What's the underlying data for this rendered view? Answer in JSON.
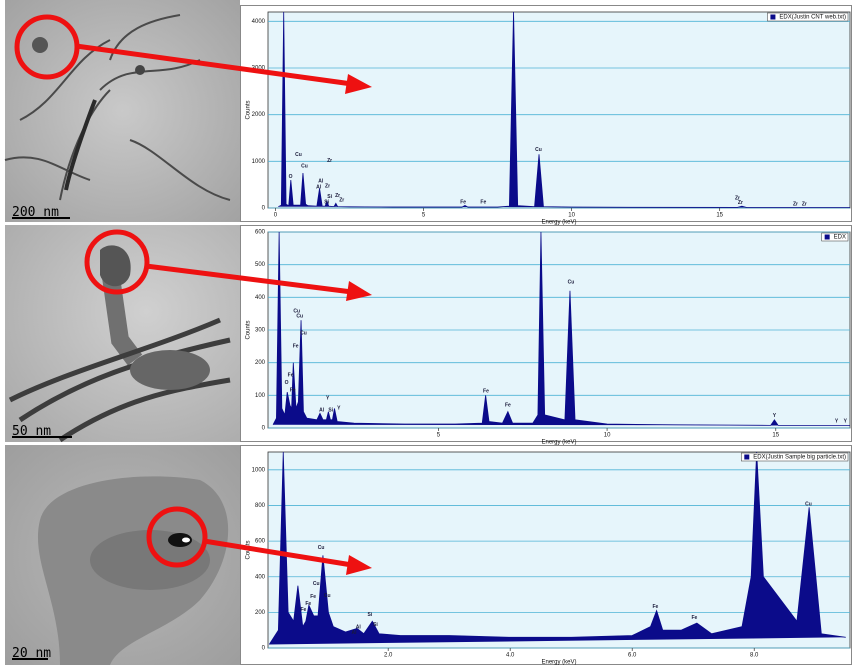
{
  "images": [
    {
      "scale_bar": "200 nm"
    },
    {
      "scale_bar": "50 nm"
    },
    {
      "scale_bar": "20 nm"
    }
  ],
  "chart_data": [
    {
      "type": "area",
      "x_label": "Energy (keV)",
      "y_label": "Counts",
      "x": [
        0.1,
        0.2,
        0.28,
        0.36,
        0.45,
        0.52,
        0.6,
        0.85,
        0.93,
        1.02,
        1.1,
        1.4,
        1.49,
        1.58,
        1.68,
        1.74,
        1.8,
        1.98,
        2.04,
        2.1,
        2.5,
        4,
        6.3,
        6.4,
        6.5,
        7.5,
        7.9,
        8.04,
        8.18,
        8.75,
        8.9,
        9.05,
        10,
        12,
        15.6,
        15.75,
        15.9,
        18,
        19.4
      ],
      "series": [
        {
          "name": "EDX(Justin CNT web.txt)",
          "color": "#0b0b8a",
          "values": [
            30,
            60,
            4200,
            80,
            50,
            600,
            60,
            60,
            750,
            80,
            50,
            40,
            420,
            40,
            40,
            150,
            40,
            30,
            100,
            30,
            25,
            20,
            20,
            55,
            20,
            20,
            40,
            4200,
            50,
            30,
            1150,
            30,
            20,
            15,
            12,
            40,
            12,
            10,
            10
          ]
        }
      ],
      "xlim": [
        -0.25,
        19.4
      ],
      "ylim": [
        0,
        4200
      ],
      "xticks": [
        0,
        5,
        10,
        15
      ],
      "yticks": [
        0,
        1000,
        2000,
        3000,
        4000
      ],
      "grid": true,
      "annotations": [
        {
          "text": "Cu",
          "x": 0.78,
          "y": 1140
        },
        {
          "text": "O",
          "x": 0.51,
          "y": 670
        },
        {
          "text": "Cu",
          "x": 0.98,
          "y": 900
        },
        {
          "text": "Zr",
          "x": 1.83,
          "y": 1010
        },
        {
          "text": "Al",
          "x": 1.53,
          "y": 580
        },
        {
          "text": "Al",
          "x": 1.46,
          "y": 450
        },
        {
          "text": "Zr",
          "x": 1.76,
          "y": 470
        },
        {
          "text": "Si",
          "x": 1.83,
          "y": 240
        },
        {
          "text": "Zr",
          "x": 2.1,
          "y": 260
        },
        {
          "text": "Si",
          "x": 1.73,
          "y": 130
        },
        {
          "text": "Zr",
          "x": 2.24,
          "y": 170
        },
        {
          "text": "Fe",
          "x": 6.34,
          "y": 130
        },
        {
          "text": "Fe",
          "x": 7.02,
          "y": 130
        },
        {
          "text": "Cu",
          "x": 8.88,
          "y": 1250
        },
        {
          "text": "Zr",
          "x": 15.6,
          "y": 215
        },
        {
          "text": "Zr",
          "x": 15.7,
          "y": 110
        },
        {
          "text": "Zr",
          "x": 17.56,
          "y": 86
        },
        {
          "text": "Zr",
          "x": 17.86,
          "y": 86
        }
      ]
    },
    {
      "type": "area",
      "x_label": "Energy (keV)",
      "y_label": "Counts",
      "x": [
        0.1,
        0.2,
        0.28,
        0.36,
        0.45,
        0.52,
        0.6,
        0.65,
        0.7,
        0.78,
        0.85,
        0.93,
        1.0,
        1.1,
        1.4,
        1.49,
        1.58,
        1.68,
        1.74,
        1.8,
        1.86,
        1.92,
        2.0,
        2.5,
        4,
        5.5,
        6.3,
        6.4,
        6.5,
        6.9,
        7.06,
        7.2,
        7.8,
        7.95,
        8.04,
        8.15,
        8.75,
        8.9,
        9.05,
        10,
        12,
        14.85,
        14.96,
        15.07,
        17.2
      ],
      "series": [
        {
          "name": "EDX",
          "color": "#0b0b8a",
          "values": [
            10,
            30,
            600,
            60,
            40,
            110,
            70,
            60,
            200,
            60,
            80,
            330,
            50,
            30,
            25,
            45,
            25,
            25,
            50,
            25,
            25,
            60,
            20,
            15,
            12,
            12,
            15,
            100,
            20,
            15,
            50,
            15,
            15,
            40,
            600,
            40,
            25,
            420,
            25,
            12,
            10,
            8,
            25,
            8,
            8
          ]
        }
      ],
      "xlim": [
        -0.05,
        17.2
      ],
      "ylim": [
        0,
        600
      ],
      "xticks": [
        5,
        10,
        15
      ],
      "yticks": [
        0,
        100,
        200,
        300,
        400,
        500,
        600
      ],
      "grid": true,
      "annotations": [
        {
          "text": "Fe",
          "x": 0.62,
          "y": 162
        },
        {
          "text": "Cu",
          "x": 0.8,
          "y": 358
        },
        {
          "text": "Cu",
          "x": 0.89,
          "y": 343
        },
        {
          "text": "Cu",
          "x": 1.0,
          "y": 291
        },
        {
          "text": "Fe",
          "x": 0.77,
          "y": 251
        },
        {
          "text": "O",
          "x": 0.5,
          "y": 138
        },
        {
          "text": "Fe",
          "x": 0.68,
          "y": 116
        },
        {
          "text": "Y",
          "x": 1.72,
          "y": 92
        },
        {
          "text": "Al",
          "x": 1.54,
          "y": 55
        },
        {
          "text": "Si",
          "x": 1.81,
          "y": 55
        },
        {
          "text": "Y",
          "x": 2.05,
          "y": 61
        },
        {
          "text": "Fe",
          "x": 6.41,
          "y": 113
        },
        {
          "text": "Fe",
          "x": 7.06,
          "y": 70
        },
        {
          "text": "Cu",
          "x": 8.93,
          "y": 447
        },
        {
          "text": "Y",
          "x": 14.96,
          "y": 37
        },
        {
          "text": "Y",
          "x": 16.8,
          "y": 21
        },
        {
          "text": "Y",
          "x": 17.06,
          "y": 21
        }
      ]
    },
    {
      "type": "area",
      "x_label": "Energy (keV)",
      "y_label": "Counts",
      "x": [
        0.05,
        0.2,
        0.28,
        0.36,
        0.45,
        0.52,
        0.6,
        0.65,
        0.7,
        0.78,
        0.85,
        0.93,
        1.02,
        1.1,
        1.3,
        1.49,
        1.6,
        1.74,
        1.85,
        2.2,
        3,
        4,
        5,
        6,
        6.3,
        6.4,
        6.5,
        6.8,
        7.06,
        7.3,
        7.8,
        7.95,
        8.04,
        8.15,
        8.7,
        8.9,
        9.1,
        9.5
      ],
      "series": [
        {
          "name": "EDX(Justin Sample big particle.txt)",
          "color": "#0b0b8a",
          "values": [
            20,
            100,
            1100,
            200,
            150,
            350,
            120,
            150,
            240,
            180,
            180,
            520,
            200,
            120,
            90,
            110,
            80,
            150,
            80,
            70,
            70,
            60,
            60,
            70,
            120,
            210,
            100,
            100,
            140,
            80,
            120,
            400,
            1100,
            400,
            150,
            790,
            80,
            60
          ]
        }
      ],
      "xlim": [
        0.03,
        9.57
      ],
      "ylim": [
        0,
        1100
      ],
      "xticks": [
        {
          "value": 2,
          "label": "2.0"
        },
        {
          "value": 4,
          "label": "4.0"
        },
        {
          "value": 6,
          "label": "6.0"
        },
        {
          "value": 8,
          "label": "8.0"
        }
      ],
      "yticks": [
        0,
        200,
        400,
        600,
        800,
        1000
      ],
      "grid": true,
      "annotations": [
        {
          "text": "Cu",
          "x": 0.9,
          "y": 563
        },
        {
          "text": "Cu",
          "x": 0.82,
          "y": 360
        },
        {
          "text": "Cu",
          "x": 1.0,
          "y": 293
        },
        {
          "text": "Fe",
          "x": 0.77,
          "y": 287
        },
        {
          "text": "Fe",
          "x": 0.69,
          "y": 248
        },
        {
          "text": "Fe",
          "x": 0.61,
          "y": 214
        },
        {
          "text": "Al",
          "x": 1.51,
          "y": 118
        },
        {
          "text": "Si",
          "x": 1.7,
          "y": 186
        },
        {
          "text": "Al",
          "x": 1.44,
          "y": 85
        },
        {
          "text": "Si",
          "x": 1.79,
          "y": 130
        },
        {
          "text": "Fe",
          "x": 6.38,
          "y": 231
        },
        {
          "text": "Fe",
          "x": 7.02,
          "y": 169
        },
        {
          "text": "Cu",
          "x": 8.89,
          "y": 806
        }
      ]
    }
  ]
}
